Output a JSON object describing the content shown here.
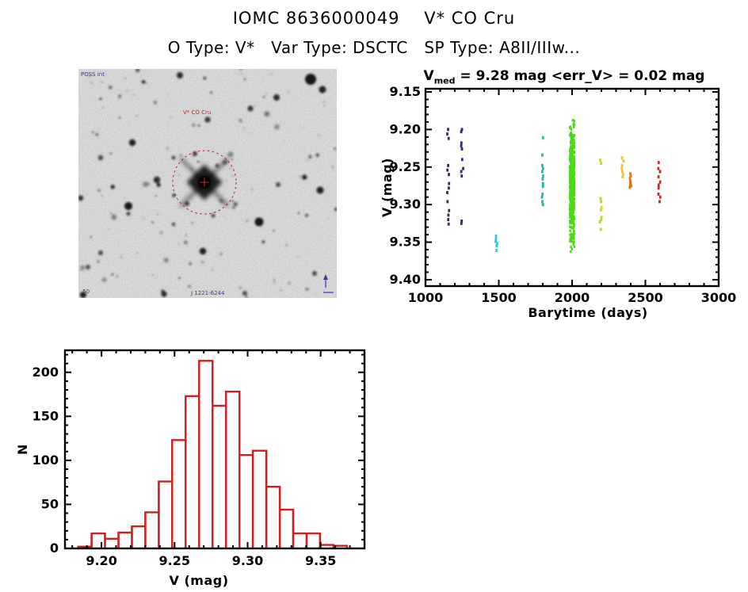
{
  "header": {
    "title": "IOMC 8636000049    V* CO Cru",
    "subtitle": "O Type: V*   Var Type: DSCTC   SP Type: A8II/IIIw..."
  },
  "finding_chart": {
    "label_top_left": "POSS int",
    "target_label": "V* CO Cru",
    "label_bottom_left": ".50",
    "label_bottom_center": "J 1221-6244",
    "annotation_color": "#cc2222",
    "text_color": "#3a3a99",
    "background_color": "#f4f4f4",
    "circle_radius": 40,
    "star_seed": 11,
    "n_stars": 135
  },
  "chart_data": [
    {
      "id": "lightcurve",
      "type": "scatter",
      "title": {
        "prefix": "V",
        "sub": "med",
        "rest": " = 9.28 mag <err_V> = 0.02 mag"
      },
      "xlabel": "Barytime (days)",
      "ylabel": "V (mag)",
      "xlim": [
        1000,
        3000
      ],
      "ylim": [
        9.1458,
        9.4085
      ],
      "y_axis_direction": "magnitude-down",
      "x_ticks": [
        1000,
        1500,
        2000,
        2500,
        3000
      ],
      "y_ticks": [
        9.15,
        9.2,
        9.25,
        9.3,
        9.35,
        9.4
      ],
      "x_minor_step": 100,
      "y_minor_step": 0.01,
      "grid": false,
      "legend": "none",
      "clusters": [
        {
          "t": 1155,
          "color": "#45245e",
          "v": [
            9.2,
            9.206,
            9.212,
            9.248,
            9.254,
            9.26,
            9.272,
            9.278,
            9.284,
            9.296,
            9.308,
            9.314,
            9.32,
            9.326
          ]
        },
        {
          "t": 1250,
          "color": "#28288e",
          "v": [
            9.2,
            9.203,
            9.218,
            9.222,
            9.226,
            9.24,
            9.252,
            9.256,
            9.262,
            9.322,
            9.325
          ]
        },
        {
          "t": 1485,
          "color": "#35c6da",
          "v": [
            9.342,
            9.346,
            9.349,
            9.352,
            9.355,
            9.361
          ]
        },
        {
          "t": 1800,
          "color": "#2bb4a0",
          "v": [
            9.211,
            9.234,
            9.248,
            9.252,
            9.256,
            9.262,
            9.266,
            9.272,
            9.276,
            9.286,
            9.29,
            9.296,
            9.3
          ]
        },
        {
          "t": 2000,
          "color": "#46dd12",
          "dense": {
            "mean": 9.272,
            "sigma": 0.036,
            "min": 9.187,
            "max": 9.363,
            "n": 560,
            "t_jitter": 16
          }
        },
        {
          "t": 2195,
          "color": "#b9dc28",
          "v": [
            9.241,
            9.245,
            9.292,
            9.296,
            9.304,
            9.307,
            9.317,
            9.32,
            9.323,
            9.333
          ]
        },
        {
          "t": 2345,
          "color": "#e9c434",
          "v": [
            9.238,
            9.242,
            9.248,
            9.252,
            9.256,
            9.26,
            9.263
          ]
        },
        {
          "t": 2400,
          "color": "#e2751c",
          "v": [
            9.259,
            9.262,
            9.265,
            9.269,
            9.271,
            9.273,
            9.275,
            9.277
          ]
        },
        {
          "t": 2595,
          "color": "#bb3026",
          "v": [
            9.244,
            9.252,
            9.256,
            9.263,
            9.27,
            9.274,
            9.278,
            9.286,
            9.29,
            9.296
          ]
        }
      ]
    },
    {
      "id": "v-histogram",
      "type": "bar",
      "xlabel": "V (mag)",
      "ylabel": "N",
      "bar_color": "#cd2020",
      "xlim": [
        9.175,
        9.38
      ],
      "ylim": [
        0,
        225
      ],
      "x_ticks": [
        9.2,
        9.25,
        9.3,
        9.35
      ],
      "y_ticks": [
        0,
        50,
        100,
        150,
        200
      ],
      "x_minor_step": 0.01,
      "y_minor_step": 10,
      "grid": false,
      "bin_start": 9.184,
      "bin_width": 0.0092,
      "counts": [
        2,
        17,
        11,
        18,
        25,
        41,
        76,
        123,
        173,
        213,
        162,
        178,
        106,
        111,
        70,
        44,
        17,
        17,
        4,
        3
      ]
    }
  ]
}
